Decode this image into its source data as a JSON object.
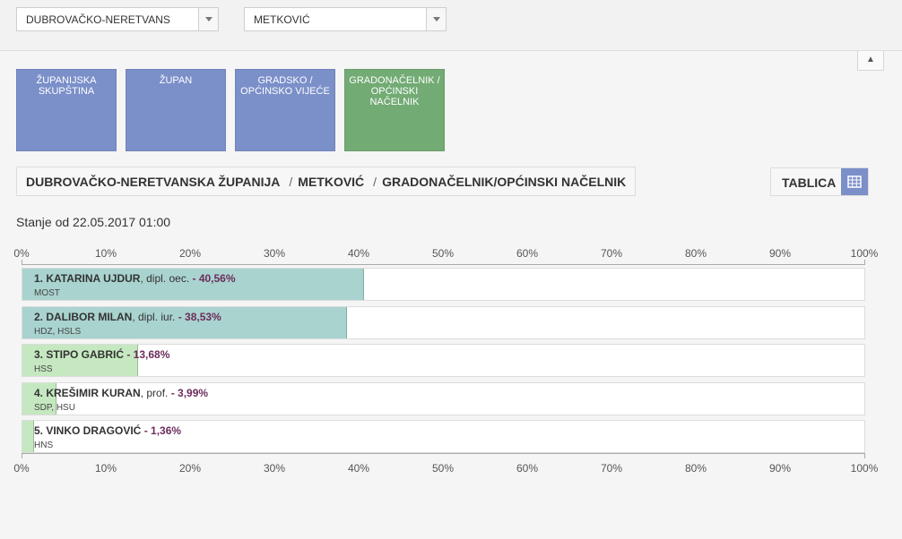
{
  "filters": {
    "county": "DUBROVAČKO-NERETVANS",
    "city": "METKOVIĆ"
  },
  "collapse_icon": "▲",
  "tiles": [
    {
      "label": "ŽUPANIJSKA SKUPŠTINA",
      "color": "#7b8fc9"
    },
    {
      "label": "ŽUPAN",
      "color": "#7b8fc9"
    },
    {
      "label": "GRADSKO / OPĆINSKO VIJEĆE",
      "color": "#7b8fc9"
    },
    {
      "label": "GRADONAČELNIK / OPĆINSKI NAČELNIK",
      "color": "#72ab74"
    }
  ],
  "breadcrumb": {
    "county": "DUBROVAČKO-NERETVANSKA ŽUPANIJA",
    "sep1": "/",
    "city": "METKOVIĆ",
    "sep2": "/",
    "office": "GRADONAČELNIK/OPĆINSKI NAČELNIK"
  },
  "view_toggle": {
    "label": "TABLICA",
    "icon": "table-grid-icon"
  },
  "status": "Stanje od 22.05.2017 01:00",
  "axis_ticks": [
    "0%",
    "10%",
    "20%",
    "30%",
    "40%",
    "50%",
    "60%",
    "70%",
    "80%",
    "90%",
    "100%"
  ],
  "chart_data": {
    "type": "bar",
    "orientation": "horizontal",
    "xlim": [
      0,
      100
    ],
    "unit": "%",
    "categories": [
      "1. KATARINA UJDUR",
      "2. DALIBOR MILAN",
      "3. STIPO GABRIĆ",
      "4. KREŠIMIR KURAN",
      "5. VINKO DRAGOVIĆ"
    ],
    "values": [
      40.56,
      38.53,
      13.68,
      3.99,
      1.36
    ],
    "bars": [
      {
        "name": "1. KATARINA UJDUR",
        "suffix": ", dipl. oec.",
        "pct_label": " - 40,56%",
        "party": "MOST",
        "value": 40.56,
        "color": "#a9d3cf"
      },
      {
        "name": "2. DALIBOR MILAN",
        "suffix": ", dipl. iur.",
        "pct_label": " - 38,53%",
        "party": "HDZ, HSLS",
        "value": 38.53,
        "color": "#a9d3cf"
      },
      {
        "name": "3. STIPO GABRIĆ",
        "suffix": "",
        "pct_label": " - 13,68%",
        "party": "HSS",
        "value": 13.68,
        "color": "#c5e8c0"
      },
      {
        "name": "4. KREŠIMIR KURAN",
        "suffix": ", prof.",
        "pct_label": " - 3,99%",
        "party": "SDP, HSU",
        "value": 3.99,
        "color": "#c5e8c0"
      },
      {
        "name": "5. VINKO DRAGOVIĆ",
        "suffix": "",
        "pct_label": " - 1,36%",
        "party": "HNS",
        "value": 1.36,
        "color": "#c5e8c0"
      }
    ]
  }
}
